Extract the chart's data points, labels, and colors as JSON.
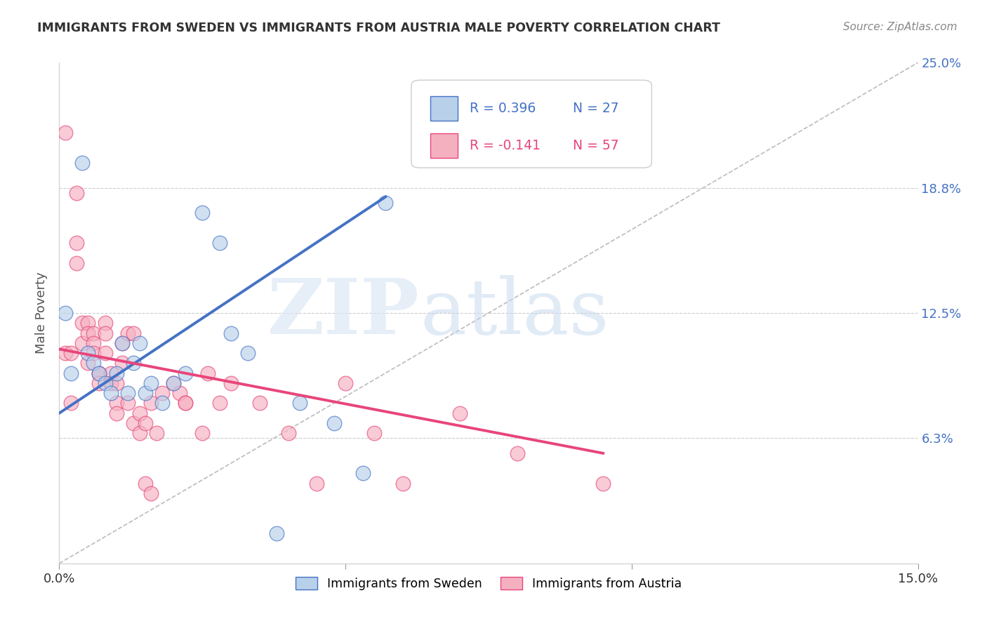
{
  "title": "IMMIGRANTS FROM SWEDEN VS IMMIGRANTS FROM AUSTRIA MALE POVERTY CORRELATION CHART",
  "source": "Source: ZipAtlas.com",
  "ylabel": "Male Poverty",
  "x_min": 0.0,
  "x_max": 0.15,
  "y_min": 0.0,
  "y_max": 0.25,
  "legend_sweden": "Immigrants from Sweden",
  "legend_austria": "Immigrants from Austria",
  "R_sweden": "R = 0.396",
  "N_sweden": "N = 27",
  "R_austria": "R = -0.141",
  "N_austria": "N = 57",
  "color_sweden": "#b8d0ea",
  "color_austria": "#f5b0c0",
  "line_color_sweden": "#4472C4",
  "line_color_austria": "#E8457A",
  "sweden_x": [
    0.001,
    0.002,
    0.004,
    0.005,
    0.006,
    0.007,
    0.008,
    0.009,
    0.01,
    0.011,
    0.012,
    0.013,
    0.014,
    0.015,
    0.016,
    0.018,
    0.02,
    0.022,
    0.025,
    0.028,
    0.03,
    0.033,
    0.038,
    0.042,
    0.048,
    0.053,
    0.057
  ],
  "sweden_y": [
    0.125,
    0.095,
    0.2,
    0.105,
    0.1,
    0.095,
    0.09,
    0.085,
    0.095,
    0.11,
    0.085,
    0.1,
    0.11,
    0.085,
    0.09,
    0.08,
    0.09,
    0.095,
    0.175,
    0.16,
    0.115,
    0.105,
    0.015,
    0.08,
    0.07,
    0.045,
    0.18
  ],
  "austria_x": [
    0.001,
    0.001,
    0.002,
    0.002,
    0.003,
    0.003,
    0.003,
    0.004,
    0.004,
    0.005,
    0.005,
    0.005,
    0.006,
    0.006,
    0.006,
    0.007,
    0.007,
    0.007,
    0.008,
    0.008,
    0.008,
    0.009,
    0.009,
    0.01,
    0.01,
    0.01,
    0.011,
    0.011,
    0.012,
    0.012,
    0.013,
    0.013,
    0.014,
    0.014,
    0.015,
    0.015,
    0.016,
    0.016,
    0.017,
    0.018,
    0.02,
    0.021,
    0.022,
    0.022,
    0.025,
    0.026,
    0.028,
    0.03,
    0.035,
    0.04,
    0.045,
    0.05,
    0.055,
    0.06,
    0.07,
    0.08,
    0.095
  ],
  "austria_y": [
    0.215,
    0.105,
    0.105,
    0.08,
    0.185,
    0.16,
    0.15,
    0.12,
    0.11,
    0.12,
    0.115,
    0.1,
    0.115,
    0.11,
    0.105,
    0.095,
    0.095,
    0.09,
    0.12,
    0.115,
    0.105,
    0.095,
    0.09,
    0.09,
    0.08,
    0.075,
    0.11,
    0.1,
    0.115,
    0.08,
    0.115,
    0.07,
    0.075,
    0.065,
    0.07,
    0.04,
    0.035,
    0.08,
    0.065,
    0.085,
    0.09,
    0.085,
    0.08,
    0.08,
    0.065,
    0.095,
    0.08,
    0.09,
    0.08,
    0.065,
    0.04,
    0.09,
    0.065,
    0.04,
    0.075,
    0.055,
    0.04
  ],
  "watermark_zip": "ZIP",
  "watermark_atlas": "atlas",
  "background_color": "#ffffff",
  "grid_color": "#cccccc",
  "trendline_sweden_x0": 0.0,
  "trendline_sweden_y0": 0.075,
  "trendline_sweden_x1": 0.057,
  "trendline_sweden_y1": 0.183,
  "trendline_austria_x0": 0.0,
  "trendline_austria_y0": 0.107,
  "trendline_austria_x1": 0.095,
  "trendline_austria_y1": 0.055
}
